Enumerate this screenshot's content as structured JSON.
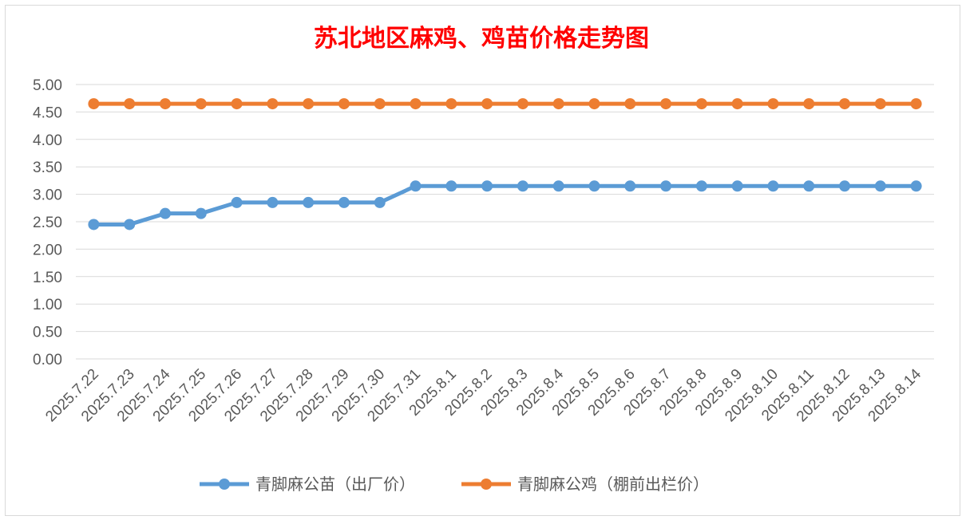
{
  "chart_data": {
    "type": "line",
    "title": "苏北地区麻鸡、鸡苗价格走势图",
    "xlabel": "",
    "ylabel": "",
    "ylim": [
      0,
      5
    ],
    "yticks": [
      "0.00",
      "0.50",
      "1.00",
      "1.50",
      "2.00",
      "2.50",
      "3.00",
      "3.50",
      "4.00",
      "4.50",
      "5.00"
    ],
    "categories": [
      "2025.7.22",
      "2025.7.23",
      "2025.7.24",
      "2025.7.25",
      "2025.7.26",
      "2025.7.27",
      "2025.7.28",
      "2025.7.29",
      "2025.7.30",
      "2025.7.31",
      "2025.8.1",
      "2025.8.2",
      "2025.8.3",
      "2025.8.4",
      "2025.8.5",
      "2025.8.6",
      "2025.8.7",
      "2025.8.8",
      "2025.8.9",
      "2025.8.10",
      "2025.8.11",
      "2025.8.12",
      "2025.8.13",
      "2025.8.14"
    ],
    "series": [
      {
        "name": "青脚麻公苗（出厂价）",
        "color": "#5B9BD5",
        "values": [
          2.45,
          2.45,
          2.65,
          2.65,
          2.85,
          2.85,
          2.85,
          2.85,
          2.85,
          3.15,
          3.15,
          3.15,
          3.15,
          3.15,
          3.15,
          3.15,
          3.15,
          3.15,
          3.15,
          3.15,
          3.15,
          3.15,
          3.15,
          3.15
        ]
      },
      {
        "name": "青脚麻公鸡（棚前出栏价）",
        "color": "#ED7D31",
        "values": [
          4.65,
          4.65,
          4.65,
          4.65,
          4.65,
          4.65,
          4.65,
          4.65,
          4.65,
          4.65,
          4.65,
          4.65,
          4.65,
          4.65,
          4.65,
          4.65,
          4.65,
          4.65,
          4.65,
          4.65,
          4.65,
          4.65,
          4.65,
          4.65
        ]
      }
    ],
    "grid": true,
    "legend": "bottom",
    "title_color": "#FF0000"
  }
}
